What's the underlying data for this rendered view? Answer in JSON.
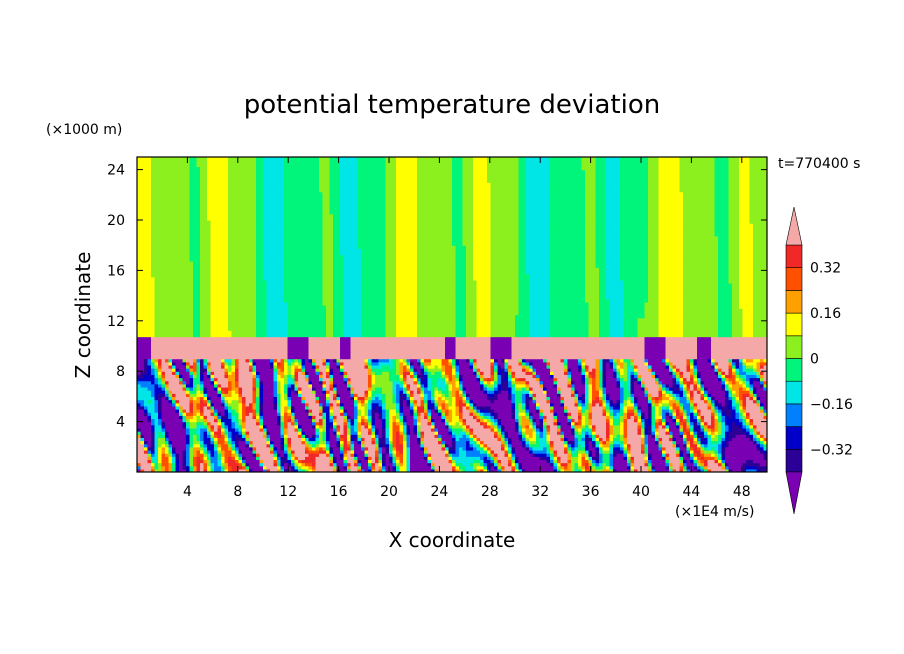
{
  "chart_data": {
    "type": "heatmap",
    "title": "potential temperature deviation",
    "xlabel": "X coordinate",
    "ylabel": "Z coordinate",
    "x_unit": "(×1E4 m/s)",
    "y_unit": "(×1000 m)",
    "time_label": "t=770400 s",
    "xlim": [
      0,
      50
    ],
    "ylim": [
      0,
      25
    ],
    "x_ticks": [
      4,
      8,
      12,
      16,
      20,
      24,
      28,
      32,
      36,
      40,
      44,
      48
    ],
    "y_ticks": [
      4,
      8,
      12,
      16,
      20,
      24
    ],
    "colorbar": {
      "levels": [
        -0.4,
        -0.32,
        -0.24,
        -0.16,
        -0.08,
        0,
        0.08,
        0.16,
        0.24,
        0.32,
        0.4
      ],
      "labels": [
        "0.32",
        "0.16",
        "0",
        "−0.16",
        "−0.32"
      ],
      "label_values": [
        0.32,
        0.16,
        0,
        -0.16,
        -0.32
      ],
      "colors": [
        "#7a00b4",
        "#2a0096",
        "#0000c8",
        "#0080ff",
        "#00e6e6",
        "#00f57a",
        "#8cf01e",
        "#ffff00",
        "#ffa000",
        "#ff5000",
        "#f02828",
        "#f4a8a8"
      ]
    },
    "layers": [
      {
        "z_range": [
          10.8,
          25
        ],
        "description": "upper layer",
        "dominant_levels": [
          0,
          0.08,
          0.16,
          -0.08
        ]
      },
      {
        "z_range": [
          9.0,
          10.8
        ],
        "description": "inversion band",
        "dominant_levels": [
          0.4,
          -0.4
        ]
      },
      {
        "z_range": [
          0,
          9.0
        ],
        "description": "turbulent lower layer",
        "dominant_levels": [
          -0.32,
          -0.16,
          0,
          0.16,
          0.32
        ]
      }
    ]
  }
}
